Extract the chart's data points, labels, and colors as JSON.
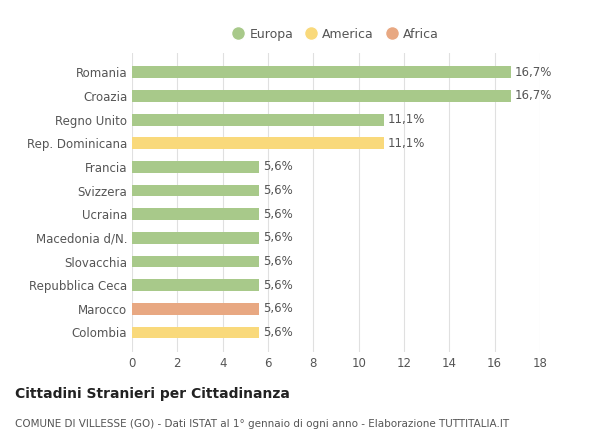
{
  "categories": [
    "Colombia",
    "Marocco",
    "Repubblica Ceca",
    "Slovacchia",
    "Macedonia d/N.",
    "Ucraina",
    "Svizzera",
    "Francia",
    "Rep. Dominicana",
    "Regno Unito",
    "Croazia",
    "Romania"
  ],
  "values": [
    5.6,
    5.6,
    5.6,
    5.6,
    5.6,
    5.6,
    5.6,
    5.6,
    11.1,
    11.1,
    16.7,
    16.7
  ],
  "labels": [
    "5,6%",
    "5,6%",
    "5,6%",
    "5,6%",
    "5,6%",
    "5,6%",
    "5,6%",
    "5,6%",
    "11,1%",
    "11,1%",
    "16,7%",
    "16,7%"
  ],
  "colors": [
    "#f9d97b",
    "#e8a882",
    "#a8c98a",
    "#a8c98a",
    "#a8c98a",
    "#a8c98a",
    "#a8c98a",
    "#a8c98a",
    "#f9d97b",
    "#a8c98a",
    "#a8c98a",
    "#a8c98a"
  ],
  "legend_labels": [
    "Europa",
    "America",
    "Africa"
  ],
  "legend_colors": [
    "#a8c98a",
    "#f9d97b",
    "#e8a882"
  ],
  "title": "Cittadini Stranieri per Cittadinanza",
  "subtitle": "COMUNE DI VILLESSE (GO) - Dati ISTAT al 1° gennaio di ogni anno - Elaborazione TUTTITALIA.IT",
  "xlim": [
    0,
    18
  ],
  "xticks": [
    0,
    2,
    4,
    6,
    8,
    10,
    12,
    14,
    16,
    18
  ],
  "background_color": "#ffffff",
  "grid_color": "#e0e0e0",
  "bar_height": 0.5,
  "label_fontsize": 8.5,
  "tick_fontsize": 8.5,
  "title_fontsize": 10,
  "subtitle_fontsize": 7.5,
  "legend_fontsize": 9
}
